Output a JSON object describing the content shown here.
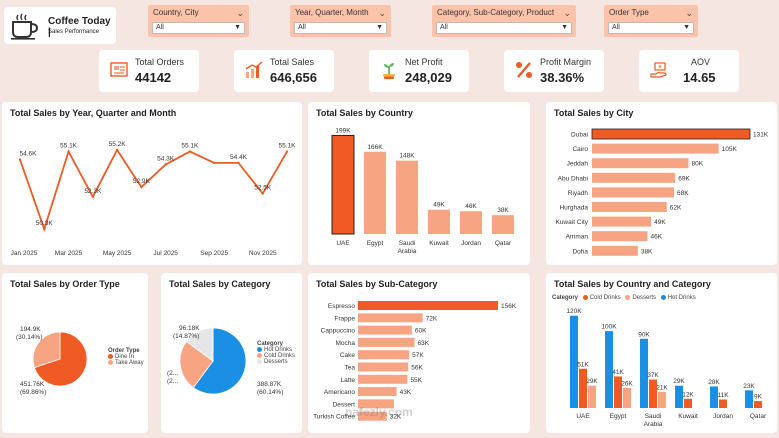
{
  "header": {
    "title": "Coffee Today |",
    "subtitle": "Sales Performance"
  },
  "slicers": [
    {
      "label": "Country, City",
      "value": "All"
    },
    {
      "label": "Year, Quarter, Month",
      "value": "All"
    },
    {
      "label": "Category, Sub-Category, Product",
      "value": "All"
    },
    {
      "label": "Order Type",
      "value": "All"
    }
  ],
  "kpis": [
    {
      "label": "Total Orders",
      "value": "44142"
    },
    {
      "label": "Total Sales",
      "value": "646,656"
    },
    {
      "label": "Net Profit",
      "value": "248,029"
    },
    {
      "label": "Profit Margin",
      "value": "38.36%"
    },
    {
      "label": "AOV",
      "value": "14.65"
    }
  ],
  "colors": {
    "accent": "#f05a24",
    "light": "#f7a482",
    "blue": "#1a8fe3",
    "bg": "#f6e6e1",
    "slicer": "#fbc3aa"
  },
  "watermark": "nafezly.com",
  "chart_data": [
    {
      "id": "sales-by-month",
      "type": "line",
      "title": "Total Sales by Year, Quarter and Month",
      "x": [
        "Jan 2025",
        "Feb 2025",
        "Mar 2025",
        "Apr 2025",
        "May 2025",
        "Jun 2025",
        "Jul 2025",
        "Aug 2025",
        "Sep 2025",
        "Oct 2025",
        "Nov 2025",
        "Dec 2025"
      ],
      "tick_labels": [
        "Jan 2025",
        "Mar 2025",
        "May 2025",
        "Jul 2025",
        "Sep 2025",
        "Nov 2025"
      ],
      "values": [
        54.6,
        50.3,
        55.1,
        52.3,
        55.2,
        52.9,
        54.3,
        55.1,
        54.4,
        54.4,
        52.5,
        55.1
      ],
      "labels": [
        "54.6K",
        "50.3K",
        "55.1K",
        "52.3K",
        "55.2K",
        "52.9K",
        "54.3K",
        "55.1K",
        "",
        "54.4K",
        "52.5K",
        "55.1K"
      ],
      "ylim": [
        49.5,
        56
      ]
    },
    {
      "id": "sales-by-country",
      "type": "bar",
      "title": "Total Sales by Country",
      "categories": [
        "UAE",
        "Egypt",
        "Saudi Arabia",
        "Kuwait",
        "Jordan",
        "Qatar"
      ],
      "values": [
        199,
        166,
        148,
        49,
        46,
        38
      ],
      "labels": [
        "199K",
        "166K",
        "148K",
        "49K",
        "46K",
        "38K"
      ],
      "ylim": [
        0,
        210
      ]
    },
    {
      "id": "sales-by-city",
      "type": "bar",
      "orientation": "horizontal",
      "title": "Total Sales by City",
      "categories": [
        "Dubai",
        "Cairo",
        "Jeddah",
        "Abu Dhabi",
        "Riyadh",
        "Hurghada",
        "Kuwait City",
        "Amman",
        "Doha"
      ],
      "values": [
        131,
        105,
        80,
        69,
        68,
        62,
        49,
        46,
        38
      ],
      "labels": [
        "131K",
        "105K",
        "80K",
        "69K",
        "68K",
        "62K",
        "49K",
        "46K",
        "38K"
      ]
    },
    {
      "id": "sales-by-order-type",
      "type": "pie",
      "title": "Total Sales by Order Type",
      "legend_title": "Order Type",
      "slices": [
        {
          "name": "Dine In",
          "value": 451.76,
          "label": "451.76K",
          "pct": "(69.86%)",
          "color": "#f05a24"
        },
        {
          "name": "Take Away",
          "value": 194.9,
          "label": "194.9K",
          "pct": "(30.14%)",
          "color": "#f7a482"
        }
      ]
    },
    {
      "id": "sales-by-category",
      "type": "pie",
      "title": "Total Sales by Category",
      "legend_title": "Category",
      "slices": [
        {
          "name": "Hot Drinks",
          "value": 388.87,
          "label": "388.87K",
          "pct": "(60.14%)",
          "color": "#1a8fe3"
        },
        {
          "name": "Cold Drinks",
          "value": 161.71,
          "label": "",
          "pct": "",
          "color": "#f7a482"
        },
        {
          "name": "Desserts",
          "value": 96.18,
          "label": "96.18K",
          "pct": "(14.87%)",
          "color": "#e6e6e6"
        }
      ],
      "cut_labels": [
        "(2...",
        "(2..."
      ]
    },
    {
      "id": "sales-by-subcategory",
      "type": "bar",
      "orientation": "horizontal",
      "title": "Total Sales by Sub-Category",
      "categories": [
        "Espresso",
        "Frappe",
        "Cappuccino",
        "Mocha",
        "Cake",
        "Tea",
        "Latte",
        "Americano",
        "Dessert",
        "Turkish Coffee"
      ],
      "values": [
        156,
        72,
        60,
        63,
        57,
        56,
        55,
        43,
        40,
        32
      ],
      "labels": [
        "156K",
        "72K",
        "60K",
        "63K",
        "57K",
        "56K",
        "55K",
        "43K",
        "",
        "32K"
      ]
    },
    {
      "id": "sales-by-country-category",
      "type": "bar",
      "title": "Total Sales by Country and Category",
      "legend_title": "Category",
      "categories": [
        "UAE",
        "Egypt",
        "Saudi Arabia",
        "Kuwait",
        "Jordan",
        "Qatar"
      ],
      "series": [
        {
          "name": "Cold Drinks",
          "values": [
            51,
            41,
            37,
            12,
            11,
            9
          ],
          "labels": [
            "51K",
            "41K",
            "37K",
            "12K",
            "11K",
            "9K"
          ],
          "color": "#f05a24"
        },
        {
          "name": "Desserts",
          "values": [
            29,
            26,
            21,
            0,
            0,
            0
          ],
          "labels": [
            "29K",
            "26K",
            "21K",
            "",
            "",
            ""
          ],
          "color": "#f7a482"
        },
        {
          "name": "Hot Drinks",
          "values": [
            120,
            100,
            90,
            29,
            28,
            23
          ],
          "labels": [
            "120K",
            "100K",
            "90K",
            "29K",
            "28K",
            "23K"
          ],
          "color": "#1a8fe3"
        }
      ],
      "draw_order": [
        "Hot Drinks",
        "Cold Drinks",
        "Desserts"
      ],
      "ylim": [
        0,
        130
      ]
    }
  ]
}
